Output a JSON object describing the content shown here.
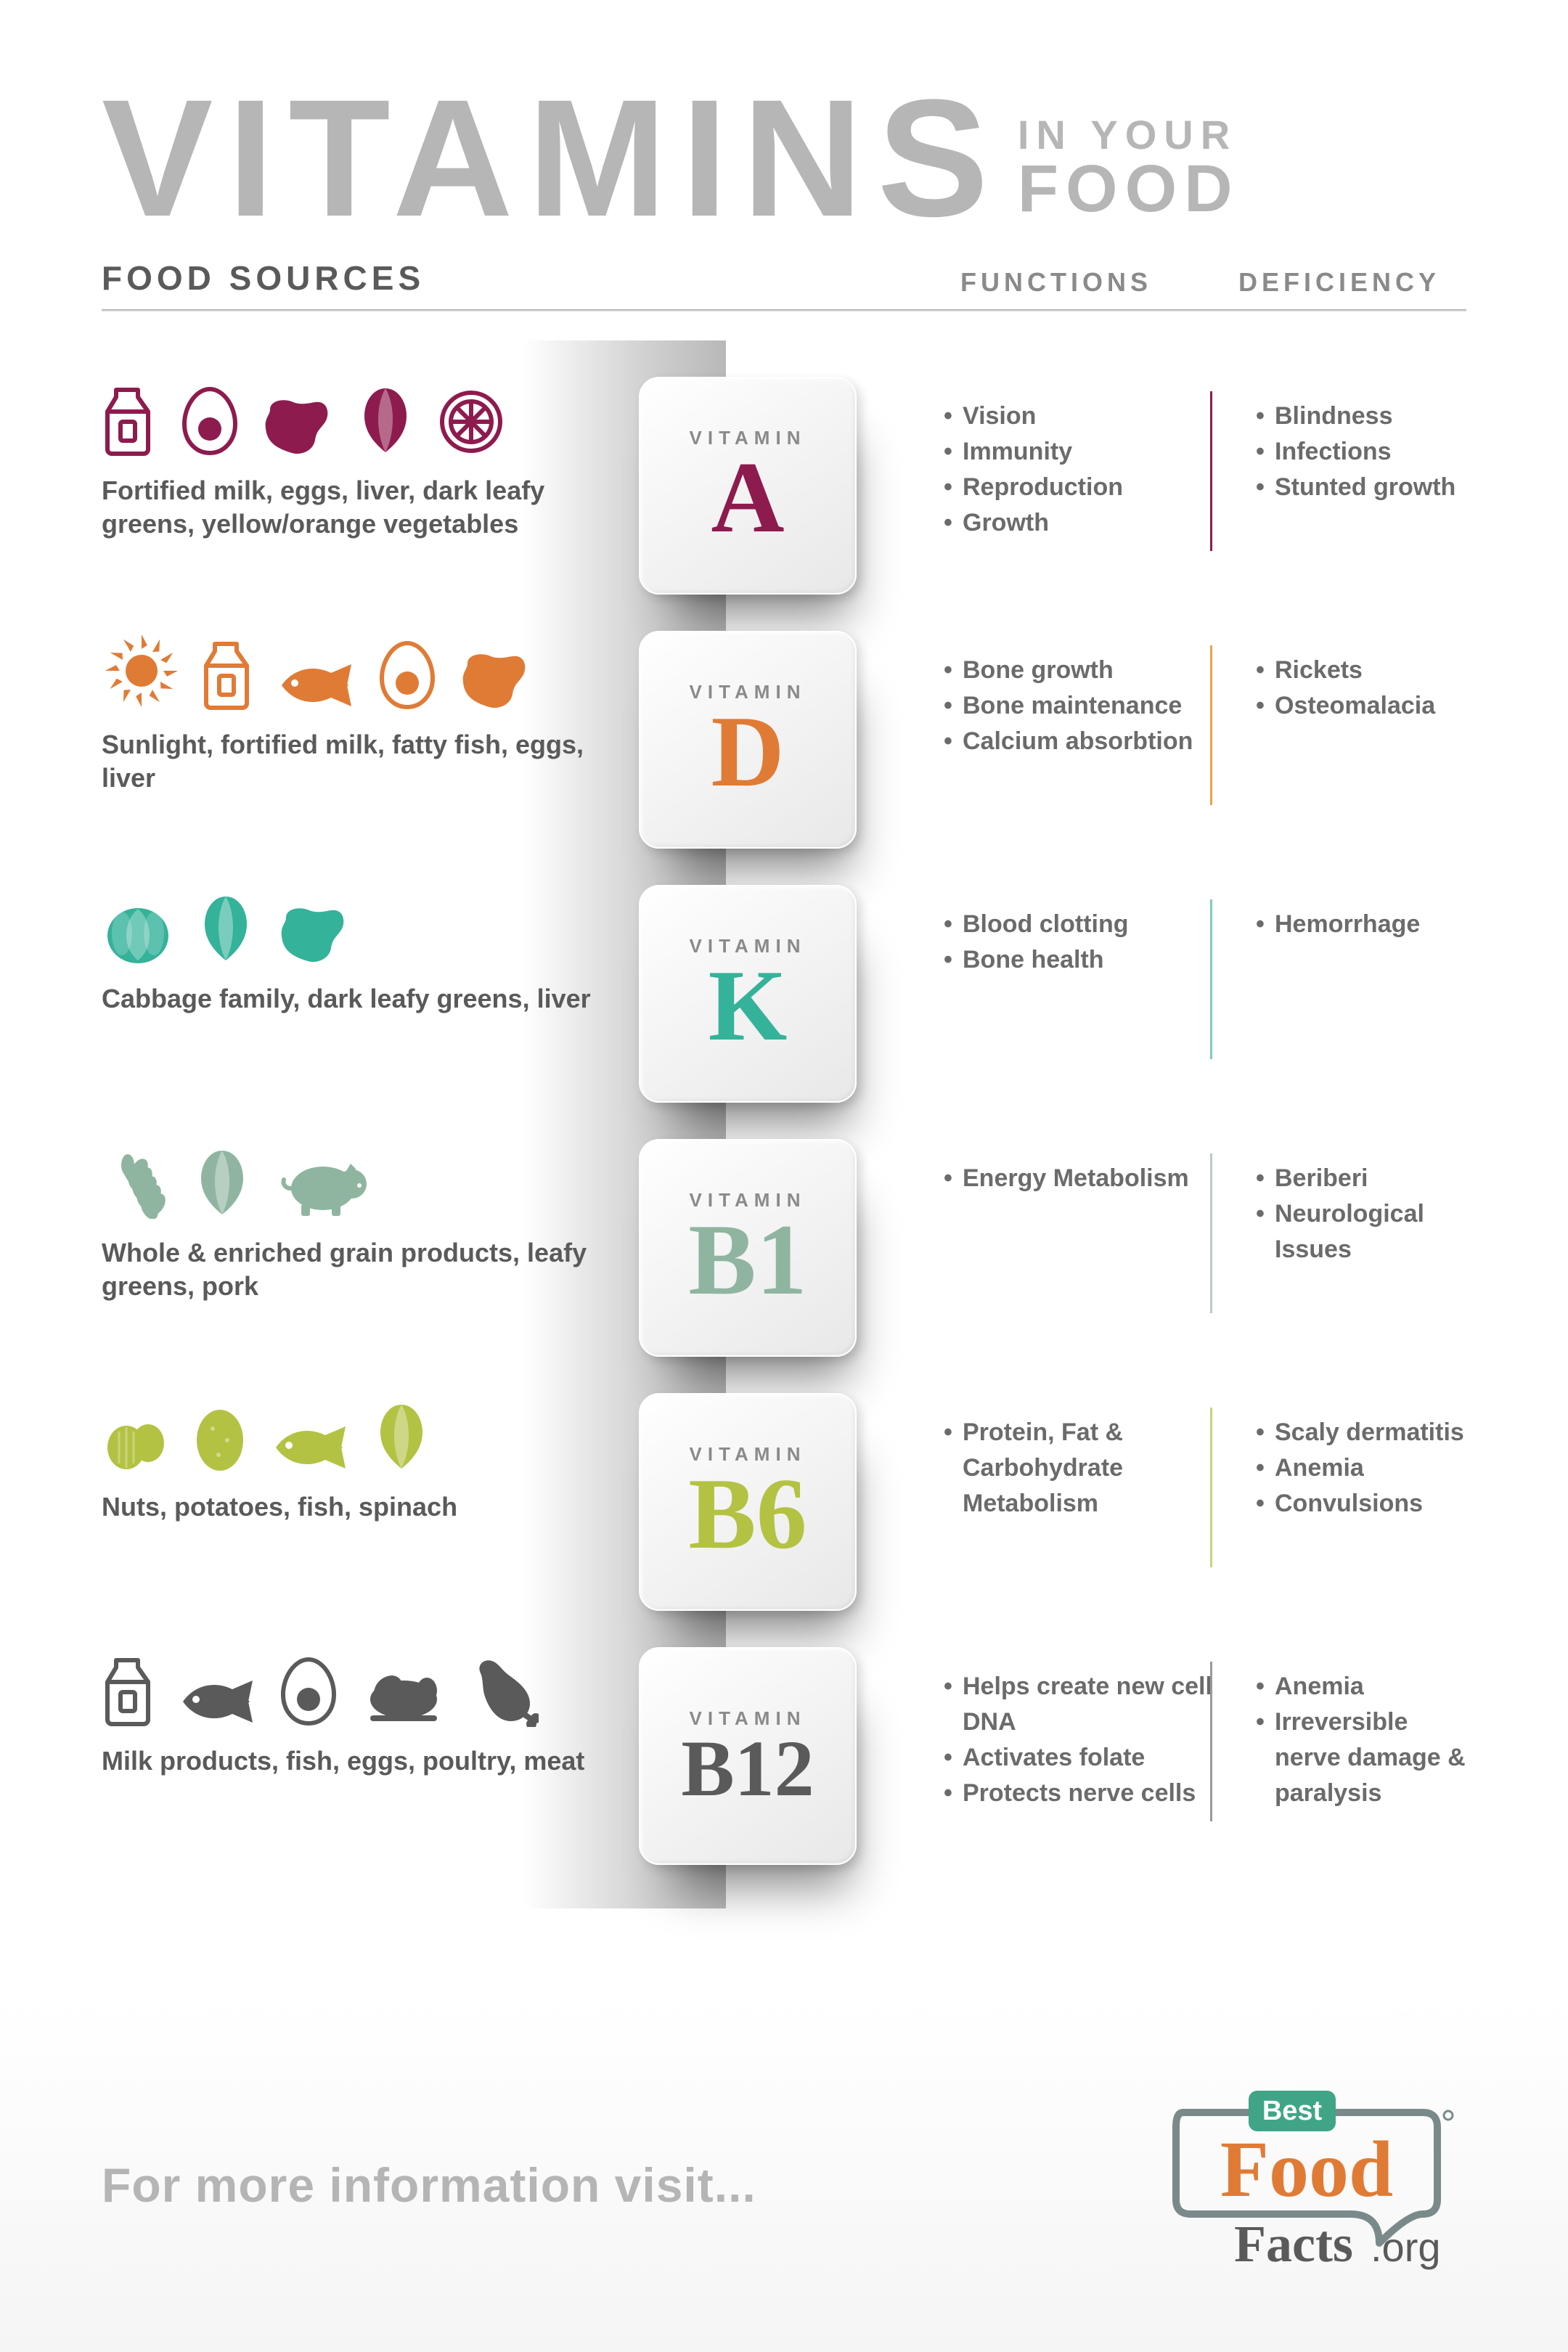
{
  "title": {
    "main": "VITAMINS",
    "sub1": "IN YOUR",
    "sub2": "FOOD",
    "color": "#b6b6b6"
  },
  "headers": {
    "sources": "FOOD SOURCES",
    "functions": "FUNCTIONS",
    "deficiency": "DEFICIENCY"
  },
  "vitamins": [
    {
      "letter": "A",
      "color": "#8e1b4e",
      "divider": "#8e1b4e",
      "sources_text": "Fortified milk, eggs, liver, dark leafy greens, yellow/orange vegetables",
      "functions": [
        "Vision",
        "Immunity",
        "Reproduction",
        "Growth"
      ],
      "deficiency": [
        "Blindness",
        "Infections",
        "Stunted growth"
      ],
      "icons": [
        "milk",
        "egg",
        "liver",
        "leafy",
        "citrus"
      ]
    },
    {
      "letter": "D",
      "color": "#e07b36",
      "divider": "#e8a24a",
      "sources_text": "Sunlight, fortified milk, fatty fish, eggs, liver",
      "functions": [
        "Bone growth",
        "Bone maintenance",
        "Calcium absorbtion"
      ],
      "deficiency": [
        "Rickets",
        "Osteomalacia"
      ],
      "icons": [
        "sun",
        "milk",
        "fish",
        "egg",
        "liver"
      ]
    },
    {
      "letter": "K",
      "color": "#34b29a",
      "divider": "#7fcbb8",
      "sources_text": "Cabbage family, dark leafy greens, liver",
      "functions": [
        "Blood clotting",
        "Bone health"
      ],
      "deficiency": [
        "Hemorrhage"
      ],
      "icons": [
        "cabbage",
        "leafy",
        "liver"
      ]
    },
    {
      "letter": "B1",
      "color": "#8fb5a0",
      "divider": "#b8ccc0",
      "sources_text": "Whole & enriched grain products, leafy greens, pork",
      "functions": [
        "Energy Metabolism"
      ],
      "deficiency": [
        "Beriberi",
        "Neurological Issues"
      ],
      "icons": [
        "grain",
        "leafy",
        "pig"
      ]
    },
    {
      "letter": "B6",
      "color": "#b4c244",
      "divider": "#c9d27a",
      "sources_text": "Nuts, potatoes, fish, spinach",
      "functions": [
        "Protein, Fat & Carbohydrate Metabolism"
      ],
      "deficiency": [
        "Scaly dermatitis",
        "Anemia",
        "Convulsions"
      ],
      "icons": [
        "nuts",
        "potato",
        "fish",
        "leafy"
      ]
    },
    {
      "letter": "B12",
      "color": "#5a5a5a",
      "divider": "#9a9a9a",
      "sources_text": "Milk products, fish, eggs, poultry, meat",
      "functions": [
        "Helps create new cell DNA",
        "Activates folate",
        "Protects nerve cells"
      ],
      "deficiency": [
        "Anemia",
        "Irreversible nerve damage & paralysis"
      ],
      "icons": [
        "milk",
        "fish",
        "egg",
        "poultry",
        "meat"
      ]
    }
  ],
  "footer": {
    "text": "For more information  visit..."
  },
  "logo": {
    "best": "Best",
    "food": "Food",
    "facts": "Facts",
    "org": ".org",
    "best_bg": "#3fa586",
    "food_color": "#e07b36",
    "facts_color": "#5a5a5a",
    "bubble_stroke": "#7a8a8a"
  },
  "tile_label": "VITAMIN",
  "background": "#ffffff"
}
